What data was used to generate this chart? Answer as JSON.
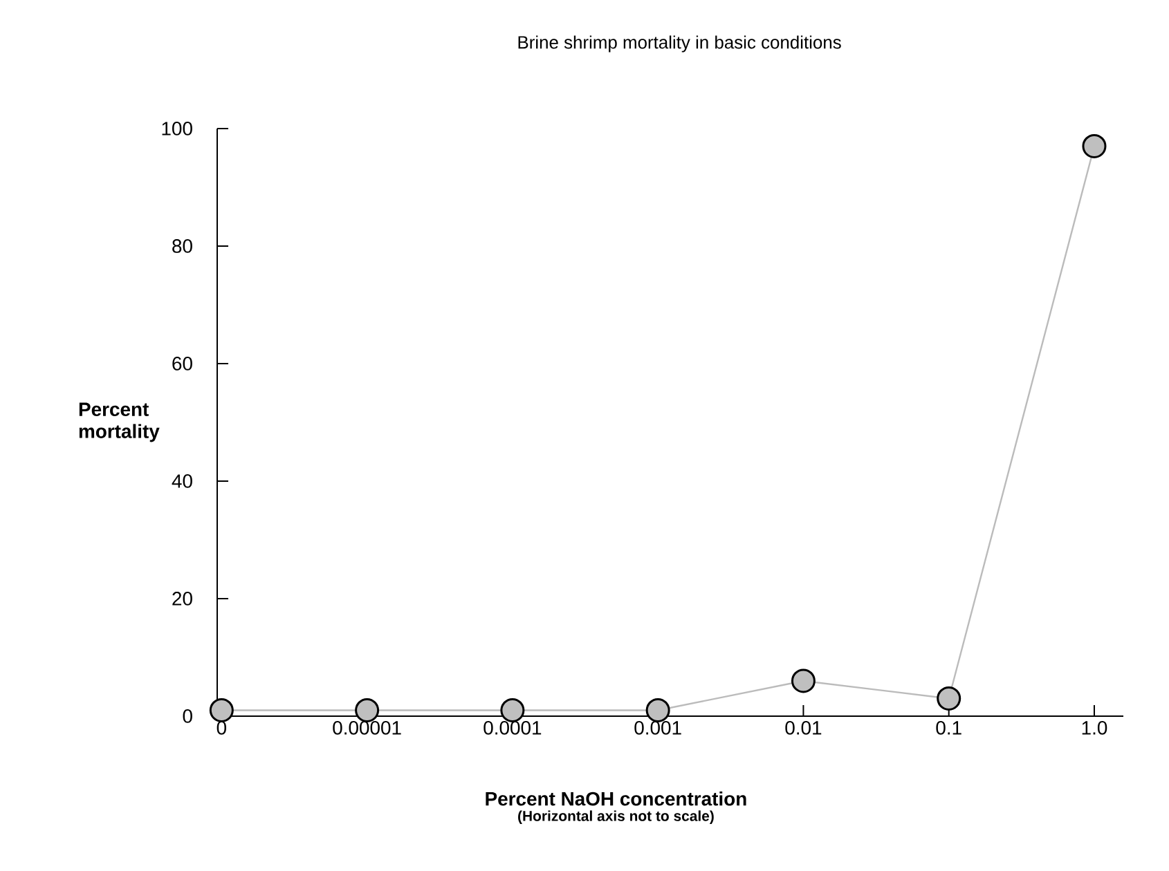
{
  "chart_data": {
    "type": "line",
    "title": "Brine shrimp mortality in basic conditions",
    "xlabel": "Percent NaOH concentration",
    "ylabel": "Percent mortality",
    "annotations": [
      "(Horizontal axis not to scale)"
    ],
    "categories": [
      "0",
      "0.00001",
      "0.0001",
      "0.001",
      "0.01",
      "0.1",
      "1.0"
    ],
    "series": [
      {
        "color": "#bbbbbb",
        "values": [
          1,
          1,
          1,
          1,
          6,
          3,
          97
        ]
      }
    ],
    "marker": "circle",
    "ylim": [
      0,
      100
    ],
    "yticks": [
      0,
      20,
      40,
      60,
      80,
      100
    ],
    "grid": false
  }
}
